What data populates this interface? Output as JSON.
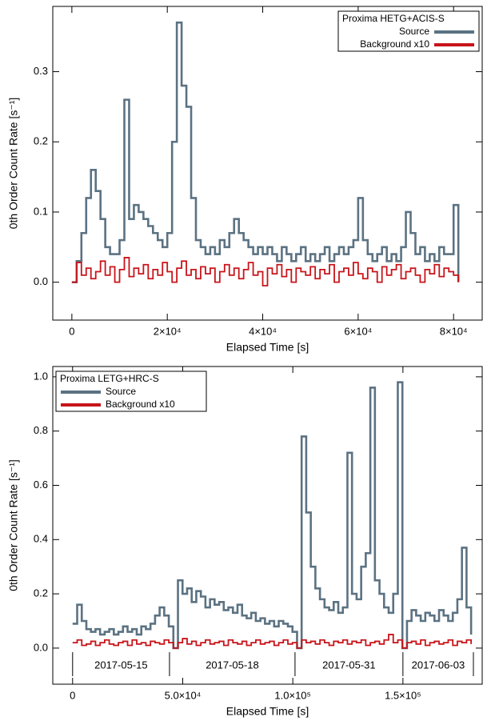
{
  "chart_data": [
    {
      "type": "line",
      "drawstyle": "steps",
      "legend_title": "Proxima HETG+ACIS-S",
      "legend": "upper right",
      "xlabel": "Elapsed Time [s]",
      "ylabel": "0th Order Count Rate [s⁻¹]",
      "xlim": [
        -4000,
        86000
      ],
      "ylim": [
        -0.054,
        0.393
      ],
      "xticks": [
        0,
        {
          "value": 20000,
          "label": "2×10⁴"
        },
        {
          "value": 40000,
          "label": "4×10⁴"
        },
        {
          "value": 60000,
          "label": "6×10⁴"
        },
        {
          "value": 80000,
          "label": "8×10⁴"
        }
      ],
      "yticks": [
        {
          "value": 0,
          "label": "0.0"
        },
        0.1,
        0.2,
        0.3
      ],
      "x": [
        0,
        1000,
        2000,
        3000,
        4000,
        5000,
        6000,
        7000,
        8000,
        9000,
        10000,
        11000,
        12000,
        13000,
        14000,
        15000,
        16000,
        17000,
        18000,
        19000,
        20000,
        21000,
        22000,
        23000,
        24000,
        25000,
        26000,
        27000,
        28000,
        29000,
        30000,
        31000,
        32000,
        33000,
        34000,
        35000,
        36000,
        37000,
        38000,
        39000,
        40000,
        41000,
        42000,
        43000,
        44000,
        45000,
        46000,
        47000,
        48000,
        49000,
        50000,
        51000,
        52000,
        53000,
        54000,
        55000,
        56000,
        57000,
        58000,
        59000,
        60000,
        61000,
        62000,
        63000,
        64000,
        65000,
        66000,
        67000,
        68000,
        69000,
        70000,
        71000,
        72000,
        73000,
        74000,
        75000,
        76000,
        77000,
        78000,
        79000,
        80000,
        81000
      ],
      "series": [
        {
          "name": "Source",
          "color": "#5b7282",
          "values": [
            0,
            0.03,
            0.07,
            0.12,
            0.16,
            0.13,
            0.09,
            0.05,
            0.04,
            0.04,
            0.06,
            0.26,
            0.09,
            0.11,
            0.1,
            0.09,
            0.08,
            0.07,
            0.06,
            0.05,
            0.07,
            0.2,
            0.37,
            0.28,
            0.25,
            0.12,
            0.06,
            0.05,
            0.04,
            0.05,
            0.04,
            0.06,
            0.05,
            0.07,
            0.09,
            0.07,
            0.06,
            0.05,
            0.04,
            0.05,
            0.04,
            0.05,
            0.04,
            0.03,
            0.05,
            0.04,
            0.03,
            0.04,
            0.05,
            0.03,
            0.04,
            0.03,
            0.04,
            0.05,
            0.03,
            0.04,
            0.05,
            0.04,
            0.05,
            0.06,
            0.12,
            0.06,
            0.04,
            0.03,
            0.04,
            0.05,
            0.03,
            0.04,
            0.03,
            0.05,
            0.1,
            0.07,
            0.04,
            0.05,
            0.03,
            0.04,
            0.03,
            0.05,
            0.04,
            0.04,
            0.11,
            0.0
          ]
        },
        {
          "name": "Background x10",
          "color": "#c8141a",
          "values": [
            0,
            0.028,
            0.01,
            0.02,
            0.005,
            0.015,
            0.03,
            0.01,
            0.022,
            0.0,
            0.018,
            0.035,
            0.008,
            0.02,
            0.012,
            0.025,
            0.005,
            0.018,
            0.01,
            0.028,
            0.015,
            0.0,
            0.02,
            0.03,
            0.01,
            0.018,
            0.005,
            0.022,
            0.012,
            0.02,
            0.0,
            0.015,
            0.025,
            0.01,
            0.02,
            0.005,
            0.018,
            0.028,
            0.01,
            0.015,
            -0.005,
            0.02,
            0.012,
            0.025,
            0.008,
            0.018,
            0.0,
            0.02,
            0.015,
            0.01,
            0.022,
            0.005,
            0.018,
            0.012,
            0.025,
            0.0,
            0.015,
            0.02,
            0.01,
            0.028,
            0.012,
            0.005,
            0.02,
            0.015,
            0.0,
            0.022,
            0.01,
            0.018,
            0.025,
            0.005,
            0.015,
            0.02,
            0.01,
            0.0,
            0.018,
            0.012,
            0.025,
            0.008,
            0.02,
            0.015,
            0.01,
            0.0
          ]
        }
      ]
    },
    {
      "type": "line",
      "drawstyle": "steps",
      "legend_title": "Proxima LETG+HRC-S",
      "legend": "upper left",
      "xlabel": "Elapsed Time [s]",
      "ylabel": "0th Order Count Rate [s⁻¹]",
      "xlim": [
        -9000,
        186000
      ],
      "ylim": [
        -0.133,
        1.038
      ],
      "xticks": [
        0,
        {
          "value": 50000,
          "label": "5.0×10⁴"
        },
        {
          "value": 100000,
          "label": "1.0×10⁵"
        },
        {
          "value": 150000,
          "label": "1.5×10⁵"
        }
      ],
      "yticks": [
        {
          "value": 0,
          "label": "0.0"
        },
        0.2,
        0.4,
        0.6,
        0.8,
        {
          "value": 1,
          "label": "1.0"
        }
      ],
      "segments": [
        {
          "label": "2017-05-15",
          "start": 0,
          "end": 44000
        },
        {
          "label": "2017-05-18",
          "start": 44000,
          "end": 101000
        },
        {
          "label": "2017-05-31",
          "start": 101000,
          "end": 150000
        },
        {
          "label": "2017-06-03",
          "start": 150000,
          "end": 182000
        }
      ],
      "x": [
        0,
        2080,
        4160,
        6240,
        8320,
        10400,
        12480,
        14560,
        16640,
        18720,
        20800,
        22880,
        24960,
        27040,
        29120,
        31200,
        33280,
        35360,
        37440,
        39520,
        41600,
        43680,
        45760,
        47840,
        49920,
        52000,
        54080,
        56160,
        58240,
        60320,
        62400,
        64480,
        66560,
        68640,
        70720,
        72800,
        74880,
        76960,
        79040,
        81120,
        83200,
        85280,
        87360,
        89440,
        91520,
        93600,
        95680,
        97760,
        99840,
        101920,
        104000,
        106080,
        108160,
        110240,
        112320,
        114400,
        116480,
        118560,
        120640,
        122720,
        124800,
        126880,
        128960,
        131040,
        133120,
        135200,
        137280,
        139360,
        141440,
        143520,
        145600,
        147680,
        149760,
        151840,
        153920,
        156000,
        158080,
        160160,
        162240,
        164320,
        166400,
        168480,
        170560,
        172640,
        174720,
        176800,
        178880,
        180960
      ],
      "series": [
        {
          "name": "Source",
          "color": "#5b7282",
          "values": [
            0.09,
            0.16,
            0.1,
            0.07,
            0.06,
            0.07,
            0.05,
            0.06,
            0.07,
            0.05,
            0.06,
            0.08,
            0.06,
            0.07,
            0.05,
            0.08,
            0.07,
            0.09,
            0.12,
            0.15,
            0.12,
            0.08,
            0,
            0.25,
            0.2,
            0.22,
            0.17,
            0.21,
            0.19,
            0.15,
            0.18,
            0.16,
            0.17,
            0.14,
            0.15,
            0.13,
            0.16,
            0.12,
            0.11,
            0.13,
            0.1,
            0.11,
            0.09,
            0.1,
            0.08,
            0.1,
            0.09,
            0.08,
            0.06,
            0,
            0.78,
            0.5,
            0.3,
            0.22,
            0.18,
            0.15,
            0.14,
            0.17,
            0.13,
            0.15,
            0.72,
            0.2,
            0.18,
            0.3,
            0.35,
            0.96,
            0.25,
            0.2,
            0.15,
            0.13,
            0.2,
            0.98,
            0,
            0.1,
            0.14,
            0.12,
            0.1,
            0.13,
            0.12,
            0.1,
            0.14,
            0.12,
            0.1,
            0.13,
            0.18,
            0.37,
            0.15,
            0.05
          ]
        },
        {
          "name": "Background x10",
          "color": "#c8141a",
          "values": [
            0.02,
            0.03,
            0.01,
            0.015,
            0.025,
            0.01,
            0.02,
            0.03,
            0.015,
            0.01,
            0.02,
            0.025,
            0.01,
            0.03,
            0.015,
            0.02,
            0.01,
            0.025,
            0.02,
            0.015,
            0.03,
            0.02,
            0,
            0.02,
            0.035,
            0.015,
            0.025,
            0.01,
            0.02,
            0.03,
            0.015,
            0.02,
            0.025,
            0.01,
            0.03,
            0.02,
            0.015,
            0.025,
            0.01,
            0.02,
            0.03,
            0.015,
            0.02,
            0.025,
            0.01,
            0.02,
            0.03,
            0.015,
            0.02,
            0,
            0.03,
            0.02,
            0.025,
            0.015,
            0.03,
            0.02,
            0.01,
            0.025,
            0.02,
            0.03,
            0.015,
            0.025,
            0.02,
            0.03,
            0.01,
            0.02,
            0.025,
            0.015,
            0.03,
            0.05,
            0.02,
            0.03,
            0,
            0.02,
            0.025,
            0.015,
            0.03,
            0.01,
            0.02,
            0.025,
            0.015,
            0.02,
            0.03,
            0.01,
            0.025,
            0.02,
            0.03,
            0.015
          ]
        }
      ]
    }
  ]
}
